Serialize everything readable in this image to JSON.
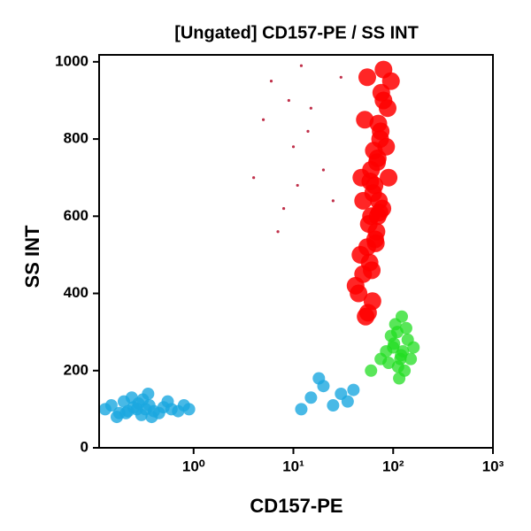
{
  "chart_data": {
    "type": "scatter",
    "title": "[Ungated] CD157-PE / SS INT",
    "x_label": "CD157-PE",
    "y_label": "SS INT",
    "xscale": "log",
    "xlim": [
      0.113,
      1000
    ],
    "xticks": [
      {
        "value": 1,
        "label": "10⁰"
      },
      {
        "value": 10,
        "label": "10¹"
      },
      {
        "value": 100,
        "label": "10²"
      },
      {
        "value": 1000,
        "label": "10³"
      }
    ],
    "ylim": [
      0,
      1018
    ],
    "yticks": [
      0,
      200,
      400,
      600,
      800,
      1000
    ],
    "series": [
      {
        "color": "#ff0000",
        "x": [
          45,
          50,
          55,
          60,
          65,
          70,
          75,
          80,
          55,
          62,
          68,
          72,
          48,
          58,
          66,
          78,
          85,
          52,
          60,
          70,
          42,
          47,
          57,
          63,
          69,
          74,
          88,
          95,
          53,
          61,
          67,
          73,
          59,
          64,
          71,
          76,
          50,
          56,
          80,
          90
        ],
        "values": [
          400,
          450,
          520,
          600,
          680,
          750,
          820,
          900,
          960,
          380,
          560,
          640,
          700,
          480,
          540,
          620,
          780,
          850,
          720,
          600,
          420,
          500,
          580,
          660,
          740,
          800,
          880,
          950,
          340,
          460,
          530,
          610,
          690,
          770,
          840,
          920,
          640,
          350,
          980,
          700
        ]
      },
      {
        "color": "#22dd22",
        "x": [
          90,
          100,
          110,
          120,
          130,
          140,
          105,
          115,
          125,
          95,
          85,
          150,
          135,
          112,
          102,
          122,
          160,
          75,
          60,
          118
        ],
        "values": [
          220,
          260,
          300,
          240,
          200,
          280,
          320,
          180,
          250,
          290,
          250,
          230,
          310,
          210,
          270,
          340,
          260,
          230,
          200,
          230
        ]
      },
      {
        "color": "#1aa7e0",
        "x": [
          0.13,
          0.15,
          0.18,
          0.2,
          0.22,
          0.25,
          0.28,
          0.3,
          0.33,
          0.36,
          0.4,
          0.45,
          0.5,
          0.6,
          0.7,
          0.8,
          0.17,
          0.24,
          0.31,
          0.38,
          0.27,
          0.21,
          0.35,
          0.9,
          0.55,
          15,
          20,
          25,
          30,
          35,
          12,
          40,
          18
        ],
        "values": [
          100,
          110,
          90,
          120,
          95,
          105,
          115,
          85,
          100,
          110,
          95,
          90,
          105,
          100,
          95,
          110,
          80,
          130,
          125,
          80,
          100,
          90,
          140,
          100,
          120,
          130,
          160,
          110,
          140,
          120,
          100,
          150,
          180
        ]
      },
      {
        "color": "#c0304a",
        "x": [
          4,
          5,
          6,
          8,
          10,
          12,
          15,
          20,
          7,
          9,
          25,
          30,
          14,
          11
        ],
        "values": [
          700,
          850,
          950,
          620,
          780,
          990,
          880,
          720,
          560,
          900,
          640,
          960,
          820,
          680
        ]
      }
    ]
  }
}
